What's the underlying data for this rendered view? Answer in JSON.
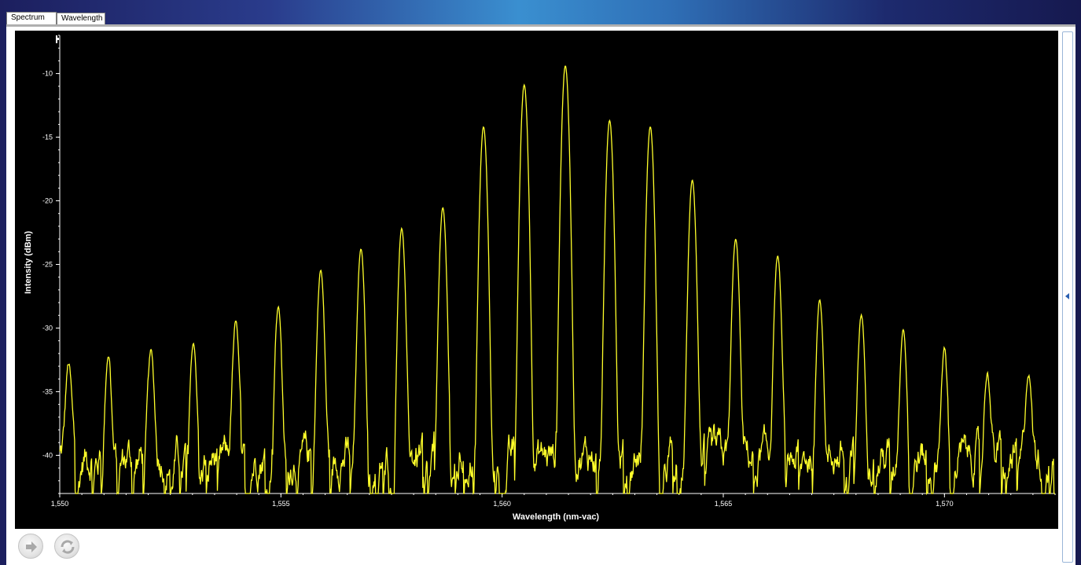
{
  "tabs": [
    {
      "label": "Spectrum",
      "active": true
    },
    {
      "label": "Wavelength",
      "active": false
    }
  ],
  "chart_data": {
    "type": "line",
    "title": "",
    "xlabel": "Wavelength (nm-vac)",
    "ylabel": "Intensity (dBm)",
    "xlim": [
      1550,
      1572.5
    ],
    "ylim": [
      -43,
      -7
    ],
    "x_ticks": [
      "1,550",
      "1,555",
      "1,560",
      "1,565",
      "1,570"
    ],
    "y_ticks": [
      "-10",
      "-15",
      "-20",
      "-25",
      "-30",
      "-35",
      "-40"
    ],
    "grid": false,
    "background": "#000000",
    "line_color": "#ffff2a",
    "noise_floor_dbm": -40,
    "peaks": {
      "x": [
        1550.2,
        1551.1,
        1552.06,
        1553.02,
        1553.98,
        1554.94,
        1555.9,
        1556.81,
        1557.73,
        1558.66,
        1559.58,
        1560.5,
        1561.43,
        1562.43,
        1563.35,
        1564.3,
        1565.28,
        1566.23,
        1567.18,
        1568.12,
        1569.07,
        1570.0,
        1570.97,
        1571.9,
        1572.7
      ],
      "y": [
        -33.8,
        -32.8,
        -32.6,
        -31.3,
        -30.0,
        -28.5,
        -25.6,
        -23.9,
        -22.2,
        -20.6,
        -14.2,
        -10.9,
        -9.4,
        -13.7,
        -14.2,
        -18.4,
        -23.1,
        -24.4,
        -27.9,
        -29.3,
        -30.5,
        -32.4,
        -34.5,
        -34.6,
        -35.4
      ]
    }
  },
  "controls": {
    "run_icon": "arrow-right-icon",
    "refresh_icon": "refresh-icon",
    "side_panel_icon": "chevron-left-icon"
  }
}
